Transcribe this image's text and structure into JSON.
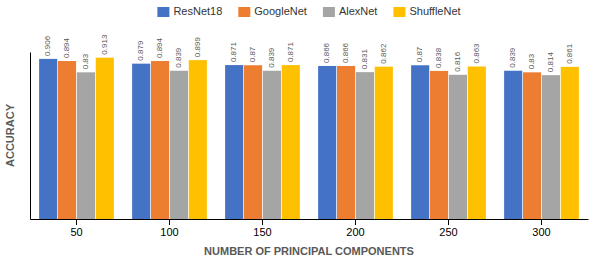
{
  "chart_data": {
    "type": "bar",
    "categories": [
      "50",
      "100",
      "150",
      "200",
      "250",
      "300"
    ],
    "series": [
      {
        "name": "ResNet18",
        "color": "#4472C4",
        "values": [
          0.906,
          0.879,
          0.871,
          0.866,
          0.87,
          0.839
        ]
      },
      {
        "name": "GoogleNet",
        "color": "#ED7D31",
        "values": [
          0.894,
          0.894,
          0.87,
          0.866,
          0.838,
          0.83
        ]
      },
      {
        "name": "AlexNet",
        "color": "#A5A5A5",
        "values": [
          0.83,
          0.839,
          0.839,
          0.831,
          0.816,
          0.814
        ]
      },
      {
        "name": "ShuffleNet",
        "color": "#FFC000",
        "values": [
          0.913,
          0.899,
          0.871,
          0.862,
          0.863,
          0.861
        ]
      }
    ],
    "xlabel": "NUMBER OF PRINCIPAL COMPONENTS",
    "ylabel": "ACCURACY",
    "ylim": [
      0.0,
      0.945
    ],
    "tick_labels": "x",
    "data_labels": true,
    "legend": "top",
    "grid": false
  }
}
